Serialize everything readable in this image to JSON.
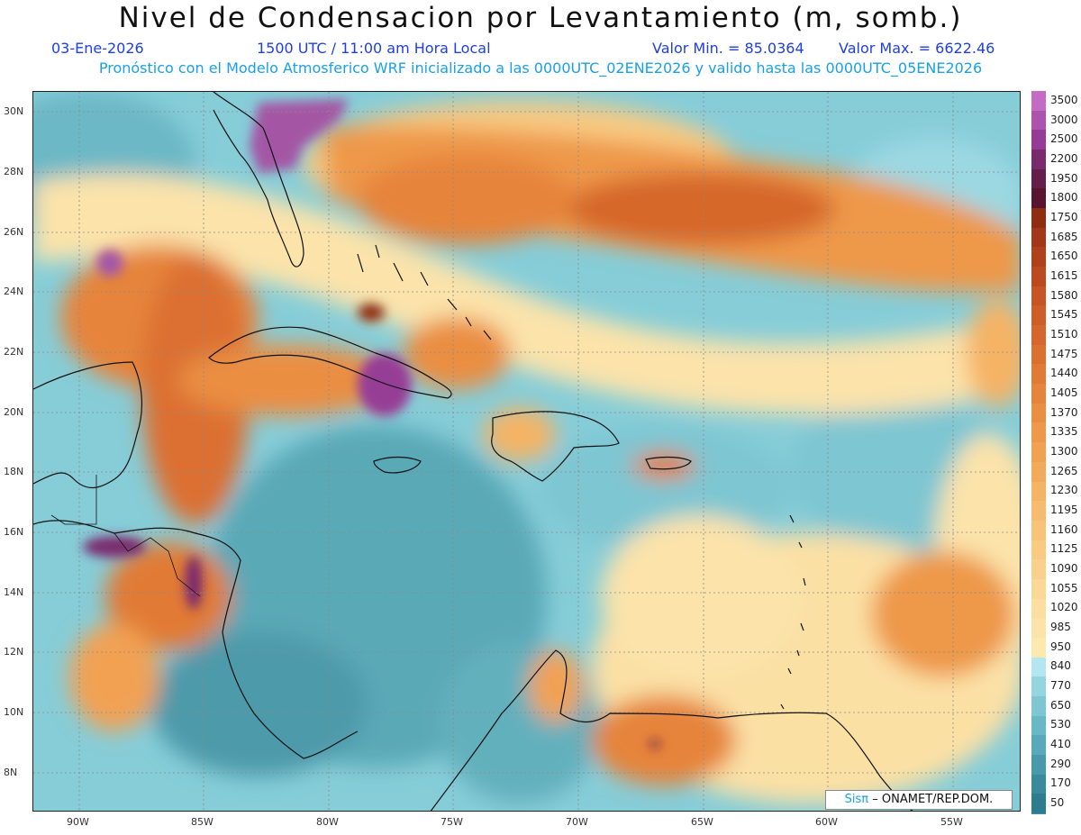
{
  "header": {
    "title": "Nivel de Condensacion por Levantamiento (m, somb.)",
    "date": "03-Ene-2026",
    "time": "1500 UTC / 11:00 am Hora Local",
    "min_label": "Valor Min. = 85.0364",
    "max_label": "Valor Max. = 6622.46",
    "model_info": "Pronóstico con el Modelo Atmosferico WRF inicializado a las 0000UTC_02ENE2026 y valido hasta las 0000UTC_05ENE2026"
  },
  "axes": {
    "lat_labels": [
      "30N",
      "28N",
      "26N",
      "24N",
      "22N",
      "20N",
      "18N",
      "16N",
      "14N",
      "12N",
      "10N",
      "8N"
    ],
    "lon_labels": [
      "90W",
      "85W",
      "80W",
      "75W",
      "70W",
      "65W",
      "60W",
      "55W"
    ]
  },
  "colorbar": {
    "labels": [
      "3500",
      "3000",
      "2500",
      "2200",
      "1950",
      "1800",
      "1750",
      "1685",
      "1650",
      "1615",
      "1580",
      "1545",
      "1510",
      "1475",
      "1440",
      "1405",
      "1370",
      "1335",
      "1300",
      "1265",
      "1230",
      "1195",
      "1160",
      "1125",
      "1090",
      "1055",
      "1020",
      "985",
      "950",
      "840",
      "770",
      "650",
      "530",
      "410",
      "290",
      "170",
      "50"
    ],
    "colors": [
      "#c46bc4",
      "#ad52ad",
      "#963c96",
      "#7a2b6e",
      "#641e4a",
      "#5a1430",
      "#8f2d10",
      "#a2371a",
      "#b0411d",
      "#bb4a20",
      "#c65424",
      "#cf5d28",
      "#d6672c",
      "#dc7030",
      "#e17a36",
      "#e6843b",
      "#ea8e42",
      "#ee984a",
      "#f2a152",
      "#f3aa5c",
      "#f5b365",
      "#f6bb6e",
      "#f7c378",
      "#f8ca82",
      "#f9d18c",
      "#fad896",
      "#fbdea0",
      "#fbe3aa",
      "#fde9b0",
      "#b3e6ee",
      "#95d5df",
      "#7ec6d2",
      "#69b8c6",
      "#58a9b9",
      "#4899ab",
      "#3a8a9d",
      "#2e7c90"
    ]
  },
  "credit": {
    "brand": "Sisπ",
    "org": "– ONAMET/REP.DOM."
  }
}
